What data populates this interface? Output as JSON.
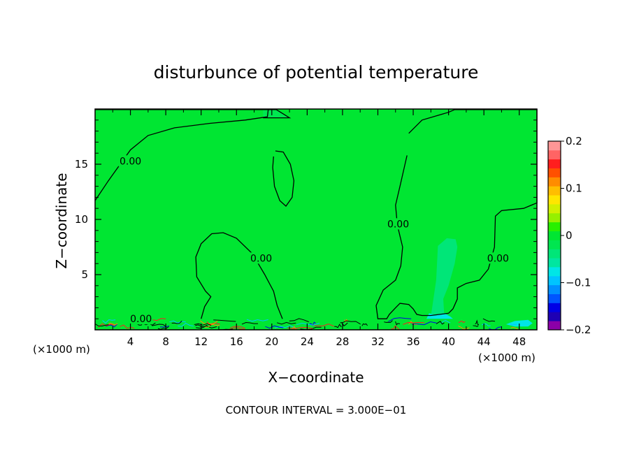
{
  "chart_data": {
    "type": "heatmap",
    "title": "disturbunce of potential temperature",
    "xlabel": "X−coordinate",
    "ylabel": "Z−coordinate",
    "x_unit": "(×1000 m)",
    "z_unit": "(×1000 m)",
    "xlim": [
      0,
      50
    ],
    "ylim": [
      0,
      20
    ],
    "x_ticks": [
      4,
      8,
      12,
      16,
      20,
      24,
      28,
      32,
      36,
      40,
      44,
      48
    ],
    "y_ticks": [
      5,
      10,
      15
    ],
    "note": "CONTOUR INTERVAL = 3.000E−01",
    "contour_label": "0.00",
    "contour_label_points": [
      {
        "x": 4.0,
        "y": 15.3
      },
      {
        "x": 18.8,
        "y": 6.5
      },
      {
        "x": 34.3,
        "y": 9.6
      },
      {
        "x": 45.6,
        "y": 6.5
      },
      {
        "x": 5.2,
        "y": 1.0
      }
    ],
    "colorbar": {
      "min": -0.2,
      "max": 0.2,
      "tick_values": [
        0.2,
        0.1,
        0,
        -0.1,
        -0.2
      ],
      "tick_labels": [
        "0.2",
        "0.1",
        "0",
        "−0.1",
        "−0.2"
      ],
      "colors": [
        "#8b00a8",
        "#1e00b4",
        "#0000e6",
        "#0055ff",
        "#0090ff",
        "#00c4ff",
        "#00e6e6",
        "#00e6a0",
        "#00e678",
        "#00e650",
        "#00e632",
        "#28f000",
        "#96f000",
        "#d2f000",
        "#ffe600",
        "#ffbe00",
        "#ff8c00",
        "#ff5000",
        "#ff1e1e",
        "#ff6464",
        "#ff9696"
      ]
    },
    "background_value": 0.0,
    "regions": [
      {
        "value": -0.005,
        "outline": [
          [
            0,
            11.7
          ],
          [
            1.5,
            13.5
          ],
          [
            4,
            16.3
          ],
          [
            6,
            17.6
          ],
          [
            9,
            18.3
          ],
          [
            13,
            18.7
          ],
          [
            17,
            19.0
          ],
          [
            19.5,
            19.3
          ],
          [
            19.6,
            19.95
          ],
          [
            0,
            19.95
          ]
        ]
      },
      {
        "value": -0.01,
        "outline": [
          [
            19,
            19.2
          ],
          [
            22,
            19.2
          ],
          [
            20.5,
            19.95
          ],
          [
            19,
            19.95
          ]
        ]
      },
      {
        "value": -0.005,
        "outline": [
          [
            35.5,
            17.8
          ],
          [
            37,
            19.0
          ],
          [
            40,
            19.7
          ],
          [
            40.7,
            19.95
          ],
          [
            50,
            19.95
          ],
          [
            50,
            11.5
          ],
          [
            48.5,
            11.0
          ],
          [
            46,
            10.8
          ],
          [
            45.3,
            10.3
          ],
          [
            45.2,
            7.5
          ],
          [
            44.5,
            5.5
          ],
          [
            43.5,
            4.5
          ],
          [
            42,
            4.2
          ],
          [
            41,
            3.8
          ],
          [
            41,
            2.8
          ],
          [
            40.5,
            1.9
          ],
          [
            40,
            1.5
          ],
          [
            38,
            1.3
          ],
          [
            37,
            1.3
          ],
          [
            36.4,
            1.4
          ],
          [
            36,
            1.9
          ],
          [
            35.5,
            2.3
          ],
          [
            34.5,
            2.4
          ],
          [
            34,
            2.0
          ],
          [
            33.3,
            1.4
          ],
          [
            33,
            1.0
          ],
          [
            32,
            1.0
          ],
          [
            31.8,
            2.2
          ],
          [
            32.6,
            3.6
          ],
          [
            34,
            4.5
          ],
          [
            34.6,
            5.8
          ],
          [
            34.8,
            7.5
          ],
          [
            34.2,
            9.5
          ],
          [
            34.0,
            11.3
          ],
          [
            34.5,
            13.0
          ],
          [
            35.3,
            15.8
          ]
        ]
      },
      {
        "value": -0.005,
        "outline": [
          [
            12,
            1.0
          ],
          [
            12.4,
            2.1
          ],
          [
            13.1,
            3.0
          ],
          [
            12.5,
            3.5
          ],
          [
            11.5,
            4.8
          ],
          [
            11.4,
            6.6
          ],
          [
            12,
            7.8
          ],
          [
            13.2,
            8.7
          ],
          [
            14.5,
            8.8
          ],
          [
            16,
            8.3
          ],
          [
            17.8,
            6.9
          ],
          [
            19.2,
            5.0
          ],
          [
            20.2,
            3.5
          ],
          [
            20.6,
            2.2
          ],
          [
            21.2,
            1.0
          ]
        ]
      },
      {
        "value": -0.005,
        "outline": [
          [
            20.4,
            16.2
          ],
          [
            21.3,
            16.1
          ],
          [
            22.1,
            15.0
          ],
          [
            22.5,
            13.5
          ],
          [
            22.3,
            12.0
          ],
          [
            21.6,
            11.2
          ],
          [
            20.9,
            11.7
          ],
          [
            20.3,
            13.0
          ],
          [
            20.1,
            14.7
          ],
          [
            20.2,
            15.7
          ]
        ]
      },
      {
        "value": -0.03,
        "outline": [
          [
            38,
            1.2
          ],
          [
            38.6,
            4.5
          ],
          [
            38.8,
            7.6
          ],
          [
            39.8,
            8.3
          ],
          [
            40.8,
            8.2
          ],
          [
            41,
            7.5
          ],
          [
            40.7,
            6.0
          ],
          [
            40,
            4.0
          ],
          [
            39.4,
            2.8
          ],
          [
            39.5,
            1.5
          ],
          [
            39,
            1.2
          ]
        ]
      },
      {
        "value": -0.07,
        "outline": [
          [
            37.5,
            1.0
          ],
          [
            37.8,
            1.5
          ],
          [
            38.6,
            1.3
          ],
          [
            39.5,
            1.5
          ],
          [
            40.2,
            1.2
          ],
          [
            40.5,
            1.0
          ]
        ]
      },
      {
        "value": -0.08,
        "outline": [
          [
            46.5,
            0.5
          ],
          [
            47.5,
            0.8
          ],
          [
            49,
            0.9
          ],
          [
            49.5,
            0.6
          ],
          [
            49,
            0.3
          ],
          [
            47.5,
            0.3
          ]
        ]
      }
    ]
  }
}
